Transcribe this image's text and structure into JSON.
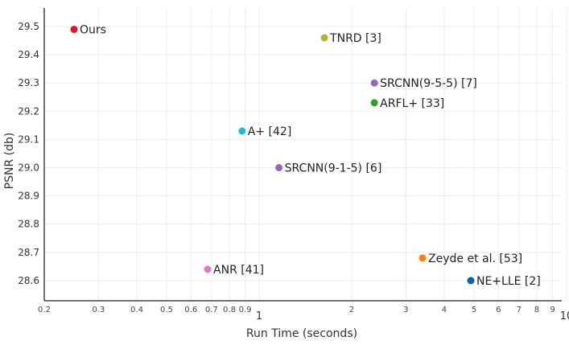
{
  "chart_data": {
    "type": "scatter",
    "title": "",
    "xlabel": "Run Time (seconds)",
    "ylabel": "PSNR (db)",
    "xscale": "log",
    "xlim": [
      0.2,
      10
    ],
    "ylim": [
      28.53,
      29.56
    ],
    "grid": true,
    "legend": "none",
    "x_ticks": [
      {
        "v": 0.2,
        "label": "0.2",
        "major": false
      },
      {
        "v": 0.3,
        "label": "0.3",
        "major": false
      },
      {
        "v": 0.4,
        "label": "0.4",
        "major": false
      },
      {
        "v": 0.5,
        "label": "0.5",
        "major": false
      },
      {
        "v": 0.6,
        "label": "0.6",
        "major": false
      },
      {
        "v": 0.7,
        "label": "0.7",
        "major": false
      },
      {
        "v": 0.8,
        "label": "0.8",
        "major": false
      },
      {
        "v": 0.9,
        "label": "0.9",
        "major": false
      },
      {
        "v": 1,
        "label": "1",
        "major": true
      },
      {
        "v": 2,
        "label": "2",
        "major": false
      },
      {
        "v": 3,
        "label": "3",
        "major": false
      },
      {
        "v": 4,
        "label": "4",
        "major": false
      },
      {
        "v": 5,
        "label": "5",
        "major": false
      },
      {
        "v": 6,
        "label": "6",
        "major": false
      },
      {
        "v": 7,
        "label": "7",
        "major": false
      },
      {
        "v": 8,
        "label": "8",
        "major": false
      },
      {
        "v": 9,
        "label": "9",
        "major": false
      },
      {
        "v": 10,
        "label": "10",
        "major": true
      }
    ],
    "y_ticks": [
      "28.6",
      "28.7",
      "28.8",
      "28.9",
      "29.0",
      "29.1",
      "29.2",
      "29.3",
      "29.4",
      "29.5"
    ],
    "points": [
      {
        "label": "Ours",
        "x": 0.25,
        "y": 29.49,
        "color": "#e8132b"
      },
      {
        "label": "TNRD [3]",
        "x": 1.63,
        "y": 29.46,
        "color": "#b5b52a"
      },
      {
        "label": "SRCNN(9-5-5) [7]",
        "x": 2.37,
        "y": 29.3,
        "color": "#9467bd"
      },
      {
        "label": "ARFL+ [33]",
        "x": 2.37,
        "y": 29.23,
        "color": "#2ca02c"
      },
      {
        "label": "A+ [42]",
        "x": 0.88,
        "y": 29.13,
        "color": "#17becf"
      },
      {
        "label": "SRCNN(9-1-5) [6]",
        "x": 1.16,
        "y": 29.0,
        "color": "#9467bd"
      },
      {
        "label": "Zeyde et al. [53]",
        "x": 3.4,
        "y": 28.68,
        "color": "#ff7f0e"
      },
      {
        "label": "NE+LLE [2]",
        "x": 4.88,
        "y": 28.6,
        "color": "#0a62a8"
      },
      {
        "label": "ANR [41]",
        "x": 0.68,
        "y": 28.64,
        "color": "#e377c2"
      }
    ]
  }
}
